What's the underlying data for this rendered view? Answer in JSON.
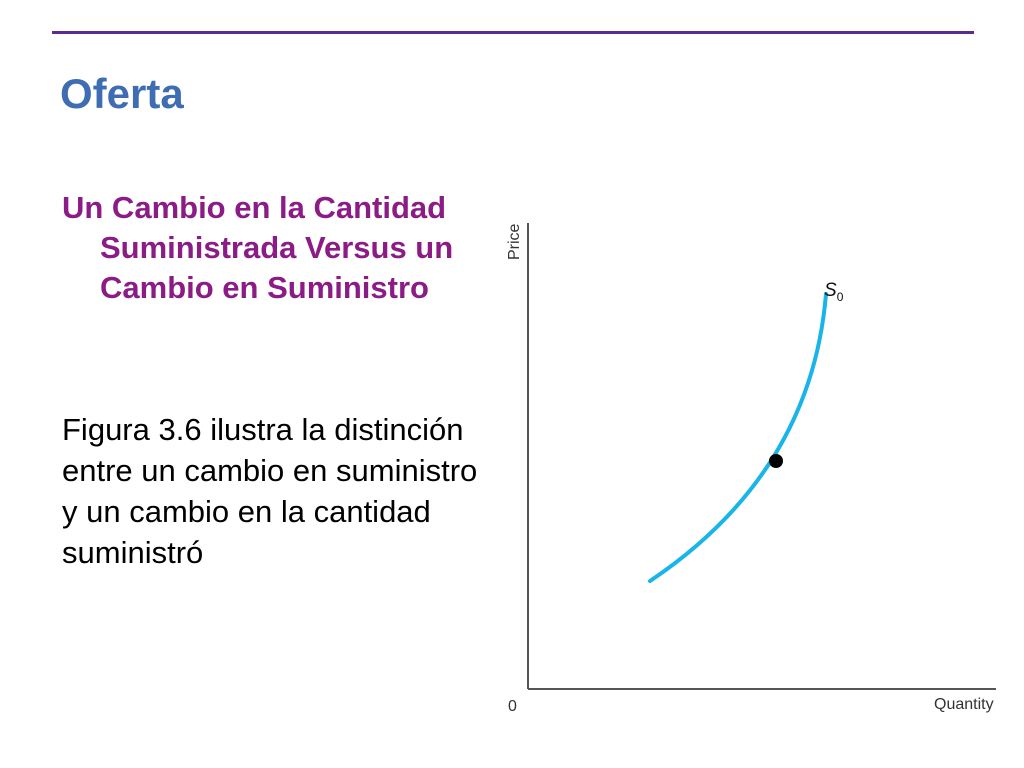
{
  "slide": {
    "title": "Oferta",
    "subheading_first": "Un Cambio en la Cantidad",
    "subheading_rest": "Suministrada Versus un Cambio en Suministro",
    "body": "Figura 3.6 ilustra la distinción entre un cambio en suministro y un cambio en la cantidad suministró",
    "colors": {
      "rule": "#5b2b91",
      "title": "#3f6db3",
      "subheading": "#8b1c86",
      "curve": "#19b5e8"
    }
  },
  "figure": {
    "ylabel": "Price",
    "xlabel": "Quantity",
    "origin": "0",
    "curve_label": "S",
    "curve_label_sub": "0"
  }
}
